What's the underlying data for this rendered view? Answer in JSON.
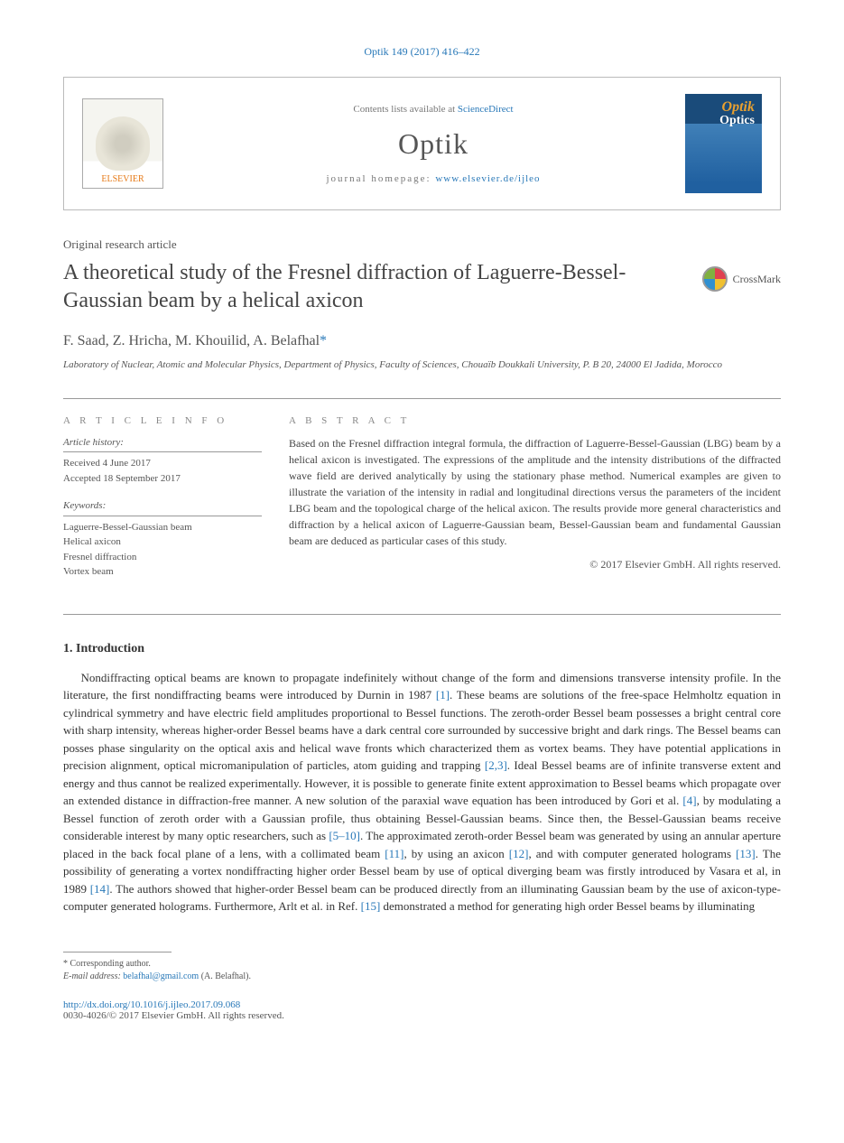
{
  "header": {
    "citation": "Optik 149 (2017) 416–422",
    "contents_prefix": "Contents lists available at ",
    "contents_link": "ScienceDirect",
    "journal_name": "Optik",
    "homepage_prefix": "journal homepage: ",
    "homepage_url": "www.elsevier.de/ijleo",
    "publisher": "ELSEVIER"
  },
  "article": {
    "type": "Original research article",
    "title": "A theoretical study of the Fresnel diffraction of Laguerre-Bessel-Gaussian beam by a helical axicon",
    "crossmark": "CrossMark",
    "authors": "F. Saad, Z. Hricha, M. Khouilid, A. Belafhal",
    "corr_mark": "*",
    "affiliation": "Laboratory of Nuclear, Atomic and Molecular Physics, Department of Physics, Faculty of Sciences, Chouaïb Doukkali University, P. B 20, 24000 El Jadida, Morocco"
  },
  "info": {
    "heading": "A R T I C L E   I N F O",
    "history_label": "Article history:",
    "received": "Received 4 June 2017",
    "accepted": "Accepted 18 September 2017",
    "keywords_label": "Keywords:",
    "keywords": [
      "Laguerre-Bessel-Gaussian beam",
      "Helical axicon",
      "Fresnel diffraction",
      "Vortex beam"
    ]
  },
  "abstract": {
    "heading": "A B S T R A C T",
    "text": "Based on the Fresnel diffraction integral formula, the diffraction of Laguerre-Bessel-Gaussian (LBG) beam by a helical axicon is investigated. The expressions of the amplitude and the intensity distributions of the diffracted wave field are derived analytically by using the stationary phase method. Numerical examples are given to illustrate the variation of the intensity in radial and longitudinal directions versus the parameters of the incident LBG beam and the topological charge of the helical axicon. The results provide more general characteristics and diffraction by a helical axicon of Laguerre-Gaussian beam, Bessel-Gaussian beam and fundamental Gaussian beam are deduced as particular cases of this study.",
    "copyright": "© 2017 Elsevier GmbH. All rights reserved."
  },
  "body": {
    "section_heading": "1.  Introduction",
    "paragraph": "Nondiffracting optical beams are known to propagate indefinitely without change of the form and dimensions transverse intensity profile. In the literature, the first nondiffracting beams were introduced by Durnin in 1987 [1]. These beams are solutions of the free-space Helmholtz equation in cylindrical symmetry and have electric field amplitudes proportional to Bessel functions. The zeroth-order Bessel beam possesses a bright central core with sharp intensity, whereas higher-order Bessel beams have a dark central core surrounded by successive bright and dark rings. The Bessel beams can posses phase singularity on the optical axis and helical wave fronts which characterized them as vortex beams. They have potential applications in precision alignment, optical micromanipulation of particles, atom guiding and trapping [2,3]. Ideal Bessel beams are of infinite transverse extent and energy and thus cannot be realized experimentally. However, it is possible to generate finite extent approximation to Bessel beams which propagate over an extended distance in diffraction-free manner. A new solution of the paraxial wave equation has been introduced by Gori et al. [4], by modulating a Bessel function of zeroth order with a Gaussian profile, thus obtaining Bessel-Gaussian beams. Since then, the Bessel-Gaussian beams receive considerable interest by many optic researchers, such as [5–10]. The approximated zeroth-order Bessel beam was generated by using an annular aperture placed in the back focal plane of a lens, with a collimated beam [11], by using an axicon [12], and with computer generated holograms [13]. The possibility of generating a vortex nondiffracting higher order Bessel beam by use of optical diverging beam was firstly introduced by Vasara et al, in 1989 [14]. The authors showed that higher-order Bessel beam can be produced directly from an illuminating Gaussian beam by the use of axicon-type-computer generated holograms. Furthermore, Arlt et al. in Ref. [15] demonstrated a method for generating high order Bessel beams by illuminating",
    "refs": [
      "[1]",
      "[2,3]",
      "[4]",
      "[5–10]",
      "[11]",
      "[12]",
      "[13]",
      "[14]",
      "[15]"
    ]
  },
  "footer": {
    "corr_label": "* Corresponding author.",
    "email_label": "E-mail address: ",
    "email": "belafhal@gmail.com",
    "email_suffix": " (A. Belafhal).",
    "doi": "http://dx.doi.org/10.1016/j.ijleo.2017.09.068",
    "issn_line": "0030-4026/© 2017 Elsevier GmbH. All rights reserved."
  },
  "colors": {
    "link": "#2878b8",
    "text": "#333333",
    "muted": "#777777",
    "accent_orange": "#e67a17"
  }
}
